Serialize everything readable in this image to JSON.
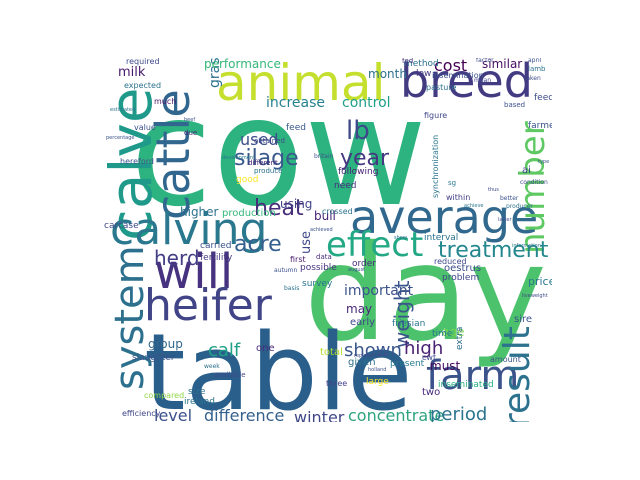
{
  "words": [
    {
      "id": "cow",
      "text": "cow",
      "color": "#2db37f"
    },
    {
      "id": "day",
      "text": "day",
      "color": "#4cc26c"
    },
    {
      "id": "table",
      "text": "table",
      "color": "#2a5f8c"
    },
    {
      "id": "calve",
      "text": "calve",
      "color": "#1f9a8a"
    },
    {
      "id": "animal",
      "text": "animal",
      "color": "#c5df2e"
    },
    {
      "id": "breed",
      "text": "breed",
      "color": "#433b82"
    },
    {
      "id": "cattle",
      "text": "cattle",
      "color": "#31668e"
    },
    {
      "id": "calving",
      "text": "calving",
      "color": "#2a788e"
    },
    {
      "id": "average",
      "text": "average",
      "color": "#31688e"
    },
    {
      "id": "system",
      "text": "system",
      "color": "#2d708e"
    },
    {
      "id": "will",
      "text": "will",
      "color": "#46327e"
    },
    {
      "id": "heifer",
      "text": "heifer",
      "color": "#414487"
    },
    {
      "id": "effect",
      "text": "effect",
      "color": "#22a884"
    },
    {
      "id": "farm",
      "text": "farm",
      "color": "#3b528b"
    },
    {
      "id": "result",
      "text": "result",
      "color": "#2c728e"
    },
    {
      "id": "number",
      "text": "number",
      "color": "#5ec962"
    },
    {
      "id": "silage",
      "text": "silage",
      "color": "#38598c"
    },
    {
      "id": "heat",
      "text": "heat",
      "color": "#472d7b"
    },
    {
      "id": "year",
      "text": "year",
      "color": "#453781"
    },
    {
      "id": "lb",
      "text": "lb",
      "color": "#3e4989"
    },
    {
      "id": "acre",
      "text": "acre",
      "color": "#355f8d"
    },
    {
      "id": "herd",
      "text": "herd",
      "color": "#433e85"
    },
    {
      "id": "treatment",
      "text": "treatment",
      "color": "#24878e"
    },
    {
      "id": "stocking-rate",
      "text": "stocking rate",
      "color": "#dde318"
    },
    {
      "id": "calf",
      "text": "calf",
      "color": "#1fa187"
    },
    {
      "id": "weight",
      "text": "weight",
      "color": "#3a548c"
    },
    {
      "id": "shown",
      "text": "shown",
      "color": "#39568c"
    },
    {
      "id": "high",
      "text": "high",
      "color": "#482173"
    },
    {
      "id": "cost",
      "text": "cost",
      "color": "#440154"
    },
    {
      "id": "level",
      "text": "level",
      "color": "#3b518b"
    },
    {
      "id": "difference",
      "text": "difference",
      "color": "#34608d"
    },
    {
      "id": "winter",
      "text": "winter",
      "color": "#3f4788"
    },
    {
      "id": "concentrate",
      "text": "concentrate",
      "color": "#2ea37f"
    },
    {
      "id": "period",
      "text": "period",
      "color": "#2b758e"
    },
    {
      "id": "important",
      "text": "important",
      "color": "#3b528b"
    },
    {
      "id": "used",
      "text": "used",
      "color": "#3d4e8a"
    },
    {
      "id": "increase",
      "text": "increase",
      "color": "#26828e"
    },
    {
      "id": "control",
      "text": "control",
      "color": "#1f9e89"
    },
    {
      "id": "grass",
      "text": "grass",
      "color": "#2c718e"
    },
    {
      "id": "milk",
      "text": "milk",
      "color": "#48186a"
    },
    {
      "id": "performance",
      "text": "performance",
      "color": "#35b779"
    },
    {
      "id": "x-friesian",
      "text": "x friesian",
      "color": "#482677"
    },
    {
      "id": "month",
      "text": "month",
      "color": "#2d718e"
    },
    {
      "id": "similar",
      "text": "similar",
      "color": "#470e61"
    },
    {
      "id": "per-cow",
      "text": "per cow",
      "color": "#25858e"
    },
    {
      "id": "per-acre",
      "text": "per acre",
      "color": "#3e4a89"
    },
    {
      "id": "higher",
      "text": "higher",
      "color": "#2c728e"
    },
    {
      "id": "using",
      "text": "using",
      "color": "#414487"
    },
    {
      "id": "bull",
      "text": "bull",
      "color": "#482374"
    },
    {
      "id": "group",
      "text": "group",
      "color": "#31688e"
    },
    {
      "id": "use",
      "text": "use",
      "color": "#3f4889"
    },
    {
      "id": "may",
      "text": "may",
      "color": "#482878"
    },
    {
      "id": "must",
      "text": "must",
      "color": "#46085c"
    },
    {
      "id": "age",
      "text": "age",
      "color": "#7ad151"
    },
    {
      "id": "sire",
      "text": "sire",
      "color": "#3b528b"
    },
    {
      "id": "price",
      "text": "price",
      "color": "#2a788e"
    },
    {
      "id": "slaughter-weight",
      "text": "slaughter weight",
      "color": "#2c718e"
    },
    {
      "id": "progesterone-treatment",
      "text": "progesterone treatment",
      "color": "#c8e020"
    },
    {
      "id": "sire-breed",
      "text": "sire breed",
      "color": "#26828e"
    },
    {
      "id": "production",
      "text": "production",
      "color": "#35b779"
    },
    {
      "id": "milk-yield",
      "text": "milk yield",
      "color": "#3b528b"
    },
    {
      "id": "inseminated",
      "text": "inseminated",
      "color": "#29af7f"
    },
    {
      "id": "dairy-x-cow",
      "text": "dairy x cow",
      "color": "#3e4a89"
    },
    {
      "id": "gross-margin",
      "text": "gross margin",
      "color": "#1f9e89"
    },
    {
      "id": "growth-rate",
      "text": "growth rate",
      "color": "#2a788e"
    },
    {
      "id": "fertility",
      "text": "fertility",
      "color": "#443983"
    },
    {
      "id": "carried",
      "text": "carried",
      "color": "#3b528b"
    },
    {
      "id": "one",
      "text": "one",
      "color": "#472c7a"
    },
    {
      "id": "total",
      "text": "total",
      "color": "#b5de2b"
    },
    {
      "id": "given",
      "text": "given",
      "color": "#2d708e"
    },
    {
      "id": "early",
      "text": "early",
      "color": "#3f4788"
    },
    {
      "id": "present",
      "text": "present",
      "color": "#287c8e"
    },
    {
      "id": "friesian",
      "text": "friesian",
      "color": "#2b758e"
    },
    {
      "id": "oestrus",
      "text": "oestrus",
      "color": "#3d4e8a"
    },
    {
      "id": "problem",
      "text": "problem",
      "color": "#404688"
    },
    {
      "id": "extra",
      "text": "extra",
      "color": "#2e6e8e"
    },
    {
      "id": "amount",
      "text": "amount",
      "color": "#3a548c"
    },
    {
      "id": "sire-2",
      "text": "sire",
      "color": "#482979"
    },
    {
      "id": "interval",
      "text": "interval",
      "color": "#2c728e"
    },
    {
      "id": "reduced",
      "text": "reduced",
      "color": "#3e4a89"
    },
    {
      "id": "survey",
      "text": "survey",
      "color": "#2b748e"
    },
    {
      "id": "possible",
      "text": "possible",
      "color": "#46337f"
    },
    {
      "id": "order",
      "text": "order",
      "color": "#472d7b"
    },
    {
      "id": "hereford",
      "text": "hereford",
      "color": "#3b528b"
    },
    {
      "id": "carcase",
      "text": "carcase",
      "color": "#3e4989"
    },
    {
      "id": "feed",
      "text": "feed",
      "color": "#38598c"
    },
    {
      "id": "heat-2",
      "text": "heat",
      "color": "#3c4f8a"
    },
    {
      "id": "grange-system",
      "text": "grange system",
      "color": "#2d708e"
    },
    {
      "id": "farmer",
      "text": "farmer",
      "color": "#3a548c"
    },
    {
      "id": "feeding",
      "text": "feeding",
      "color": "#3d4d8a"
    },
    {
      "id": "dairy-herd",
      "text": "dairy herd",
      "color": "#433e85"
    },
    {
      "id": "following",
      "text": "following",
      "color": "#482475"
    },
    {
      "id": "need",
      "text": "need",
      "color": "#472f7d"
    },
    {
      "id": "slaughter",
      "text": "slaughter",
      "color": "#3b528b"
    },
    {
      "id": "ireland",
      "text": "ireland",
      "color": "#2c728e"
    },
    {
      "id": "compared",
      "text": "compared",
      "color": "#8fd744"
    },
    {
      "id": "size",
      "text": "size",
      "color": "#2c728e"
    },
    {
      "id": "efficiency",
      "text": "efficiency",
      "color": "#3f4788"
    },
    {
      "id": "milk-production",
      "text": "milk production",
      "color": "#8fd744"
    },
    {
      "id": "aberdeen-angus",
      "text": "aberdeen angus",
      "color": "#38598c"
    },
    {
      "id": "fixed-time",
      "text": "fixed time",
      "color": "#5ec962"
    },
    {
      "id": "per-day",
      "text": "per day",
      "color": "#3b528b"
    },
    {
      "id": "three",
      "text": "three",
      "color": "#424086"
    },
    {
      "id": "two",
      "text": "two",
      "color": "#472a7a"
    },
    {
      "id": "large",
      "text": "large",
      "color": "#fde725"
    },
    {
      "id": "cwt",
      "text": "cwt",
      "color": "#3e4a89"
    },
    {
      "id": "time",
      "text": "time",
      "color": "#2a788e"
    },
    {
      "id": "method",
      "text": "method",
      "color": "#2c718e"
    },
    {
      "id": "low",
      "text": "low",
      "color": "#453781"
    },
    {
      "id": "insemination",
      "text": "insemination",
      "color": "#3b528b"
    },
    {
      "id": "pasture",
      "text": "pasture",
      "color": "#2d708e"
    },
    {
      "id": "within",
      "text": "within",
      "color": "#433e85"
    },
    {
      "id": "figure",
      "text": "figure",
      "color": "#3f4788"
    },
    {
      "id": "synchronization",
      "text": "synchronization",
      "color": "#2b758e"
    },
    {
      "id": "obtained",
      "text": "obtained",
      "color": "#3e4a89"
    },
    {
      "id": "different",
      "text": "different",
      "color": "#482374"
    },
    {
      "id": "produce",
      "text": "produce",
      "color": "#2c718e"
    },
    {
      "id": "good",
      "text": "good",
      "color": "#fde725"
    },
    {
      "id": "table-table",
      "text": "table table",
      "color": "#3b528b"
    },
    {
      "id": "expected",
      "text": "expected",
      "color": "#2c728e"
    },
    {
      "id": "required",
      "text": "required",
      "color": "#3e4989"
    },
    {
      "id": "much",
      "text": "much",
      "color": "#481668"
    },
    {
      "id": "value",
      "text": "value",
      "color": "#3b528b"
    },
    {
      "id": "first",
      "text": "first",
      "color": "#481a6c"
    },
    {
      "id": "data",
      "text": "data",
      "color": "#472d7b"
    },
    {
      "id": "ai",
      "text": "ai",
      "color": "#3f4788"
    },
    {
      "id": "sg",
      "text": "sg",
      "color": "#2a788e"
    },
    {
      "id": "factor",
      "text": "factor",
      "color": "#3e4a89"
    },
    {
      "id": "april",
      "text": "april",
      "color": "#3b528b"
    },
    {
      "id": "lamb",
      "text": "lamb",
      "color": "#2c728e"
    },
    {
      "id": "fed",
      "text": "fed",
      "color": "#472d7b"
    },
    {
      "id": "based",
      "text": "based",
      "color": "#3b528b"
    },
    {
      "id": "mean",
      "text": "mean",
      "color": "#3f4788"
    },
    {
      "id": "taken",
      "text": "taken",
      "color": "#3e4989"
    },
    {
      "id": "producer",
      "text": "producer",
      "color": "#2c718e"
    },
    {
      "id": "better",
      "text": "better",
      "color": "#3b528b"
    },
    {
      "id": "achieve",
      "text": "achieve",
      "color": "#2a788e"
    },
    {
      "id": "available",
      "text": "available",
      "color": "#3e4a89"
    },
    {
      "id": "autumn",
      "text": "autumn",
      "color": "#3b528b"
    },
    {
      "id": "basis",
      "text": "basis",
      "color": "#2c728e"
    },
    {
      "id": "holland",
      "text": "holland",
      "color": "#3b528b"
    },
    {
      "id": "week",
      "text": "week",
      "color": "#2c718e"
    },
    {
      "id": "replacement",
      "text": "replacement",
      "color": "#3e4a89"
    },
    {
      "id": "spring-calving",
      "text": "spring calving",
      "color": "#2a788e"
    },
    {
      "id": "breed-type",
      "text": "breed type",
      "color": "#3b528b"
    },
    {
      "id": "calving-pattern",
      "text": "calving pattern",
      "color": "#2c728e"
    },
    {
      "id": "day-progesterone",
      "text": "day progesterone",
      "color": "#3e4a89"
    },
    {
      "id": "britain",
      "text": "britain",
      "color": "#3b528b"
    },
    {
      "id": "daily-gain",
      "text": "daily gain",
      "color": "#3e4989"
    },
    {
      "id": "beef-production",
      "text": "beef production",
      "color": "#3b528b"
    },
    {
      "id": "development",
      "text": "development",
      "color": "#2a788e"
    },
    {
      "id": "grazing-season",
      "text": "grazing season",
      "color": "#3e4a89"
    },
    {
      "id": "percentage",
      "text": "percentage",
      "color": "#3b528b"
    },
    {
      "id": "due",
      "text": "due",
      "color": "#472d7b"
    },
    {
      "id": "estimated",
      "text": "estimated",
      "color": "#2c718e"
    },
    {
      "id": "condition",
      "text": "condition",
      "color": "#3e4a89"
    },
    {
      "id": "type",
      "text": "type",
      "color": "#3b528b"
    },
    {
      "id": "information",
      "text": "information",
      "color": "#2a788e"
    },
    {
      "id": "liveweight",
      "text": "liveweight",
      "color": "#3e4a89"
    },
    {
      "id": "august",
      "text": "august",
      "color": "#3b528b"
    },
    {
      "id": "show",
      "text": "show",
      "color": "#2c728e"
    },
    {
      "id": "dry-matter",
      "text": "dry matter",
      "color": "#3e4989"
    },
    {
      "id": "beef",
      "text": "beef",
      "color": "#3b528b"
    },
    {
      "id": "thus",
      "text": "thus",
      "color": "#3e4a89"
    },
    {
      "id": "crossed",
      "text": "crossed",
      "color": "#2c718e"
    },
    {
      "id": "achieved",
      "text": "achieved",
      "color": "#3b528b"
    },
    {
      "id": "latter",
      "text": "latter",
      "color": "#3e4a89"
    }
  ]
}
